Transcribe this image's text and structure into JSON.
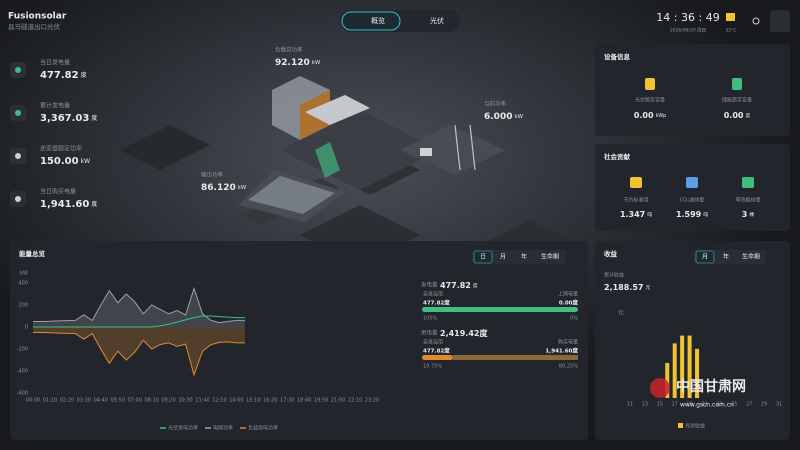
{
  "header": {
    "brand": "Fusionsolar",
    "site": "昌马隧道出口光伏",
    "tabs": [
      "概览",
      "光伏"
    ],
    "time": "14 : 36 : 49",
    "date": "2026/08/20 周四",
    "temp": "32°C"
  },
  "stats": [
    {
      "label": "当日发电量",
      "value": "477.82",
      "unit": "度"
    },
    {
      "label": "累计发电量",
      "value": "3,367.03",
      "unit": "度"
    },
    {
      "label": "逆变器额定功率",
      "value": "150.00",
      "unit": "kW"
    },
    {
      "label": "当日购买电量",
      "value": "1,941.60",
      "unit": "度"
    }
  ],
  "scene": [
    {
      "label": "负载总功率",
      "value": "92.120",
      "unit": "kW"
    },
    {
      "label": "当前功率",
      "value": "6.000",
      "unit": "kW"
    },
    {
      "label": "输出功率",
      "value": "86.120",
      "unit": "kW"
    }
  ],
  "device": {
    "title": "设备信息",
    "items": [
      {
        "label": "光伏额定容量",
        "value": "0.00",
        "unit": "kWp"
      },
      {
        "label": "储能额定容量",
        "value": "0.00",
        "unit": "度"
      }
    ]
  },
  "social": {
    "title": "社会贡献",
    "items": [
      {
        "label": "节约标准煤",
        "value": "1.347",
        "unit": "吨"
      },
      {
        "label": "CO₂减排量",
        "value": "1.599",
        "unit": "吨"
      },
      {
        "label": "等效植树量",
        "value": "3",
        "unit": "棵"
      }
    ]
  },
  "energy": {
    "title": "能量总览",
    "tabs": [
      "日",
      "月",
      "年",
      "生命期"
    ],
    "gen": {
      "label": "发电量",
      "value": "477.82",
      "unit": "度",
      "left_label": "自发自用",
      "left_value": "477.82度",
      "right_label": "上网电量",
      "right_value": "0.00度",
      "left_pct": "100%",
      "right_pct": "0%"
    },
    "use": {
      "label": "用电量",
      "value": "2,419.42度",
      "left_label": "自发自用",
      "left_value": "477.82度",
      "right_label": "购买电量",
      "right_value": "1,941.60度",
      "left_pct": "19.75%",
      "right_pct": "80.25%"
    }
  },
  "revenue": {
    "title": "收益",
    "tabs": [
      "月",
      "年",
      "生命期"
    ],
    "total_label": "累计收益",
    "total_value": "2,188.57",
    "total_unit": "元"
  },
  "watermark": [
    "中国甘肃网",
    "www.gscn.com.cn"
  ],
  "chart_data": [
    {
      "type": "line",
      "y_label": "kW",
      "categories": [
        "00:00",
        null,
        "01:10",
        null,
        "02:20",
        null,
        "03:30",
        null,
        "04:40",
        null,
        "05:50",
        null,
        "07:00",
        null,
        "08:10",
        null,
        "09:20",
        null,
        "10:30",
        null,
        "11:40",
        null,
        "12:50",
        null,
        "14:00",
        null,
        "15:10",
        null,
        "16:20",
        null,
        "17:30",
        null,
        "18:40",
        null,
        "19:50",
        null,
        "21:00",
        null,
        "22:10",
        null,
        "23:20"
      ],
      "series": [
        {
          "name": "光伏发电功率",
          "color": "#3fbf7f",
          "values": [
            0,
            0,
            0,
            0,
            0,
            0,
            0,
            0,
            0,
            0,
            0,
            0,
            0,
            0,
            0,
            10,
            25,
            45,
            65,
            85,
            100,
            100,
            95,
            90,
            85,
            85,
            null,
            null,
            null,
            null,
            null,
            null,
            null,
            null,
            null,
            null,
            null,
            null,
            null,
            null,
            null
          ]
        },
        {
          "name": "电网功率",
          "color": "#9aa0a8",
          "values": [
            50,
            50,
            52,
            55,
            58,
            60,
            110,
            60,
            200,
            330,
            220,
            300,
            230,
            120,
            200,
            160,
            120,
            150,
            110,
            350,
            120,
            60,
            40,
            50,
            60,
            60,
            null,
            null,
            null,
            null,
            null,
            null,
            null,
            null,
            null,
            null,
            null,
            null,
            null,
            null,
            null
          ]
        },
        {
          "name": "负载用电功率",
          "color": "#e08a2c",
          "values": [
            -50,
            -50,
            -52,
            -55,
            -58,
            -60,
            -110,
            -60,
            -200,
            -330,
            -220,
            -300,
            -230,
            -120,
            -200,
            -160,
            -145,
            -175,
            -155,
            -435,
            -220,
            -160,
            -140,
            -135,
            -145,
            -145,
            null,
            null,
            null,
            null,
            null,
            null,
            null,
            null,
            null,
            null,
            null,
            null,
            null,
            null,
            null
          ]
        }
      ],
      "ylim": [
        -600,
        400
      ],
      "yticks": [
        -600,
        -400,
        -200,
        0,
        200,
        400
      ],
      "legend": "bottom"
    },
    {
      "type": "bar",
      "y_label": "元",
      "legend": "bottom",
      "categories": [
        "11",
        null,
        "13",
        null,
        "15",
        null,
        "17",
        null,
        "19",
        null,
        "21",
        null,
        "23",
        null,
        "25",
        null,
        "27",
        null,
        "29",
        null,
        "31"
      ],
      "series": [
        {
          "name": "光伏收益",
          "color": "#f2c230",
          "values": [
            null,
            null,
            null,
            null,
            null,
            45,
            70,
            80,
            80,
            63,
            null,
            null,
            null,
            null,
            null,
            null,
            null,
            null,
            null,
            null,
            null
          ]
        }
      ],
      "ylim": [
        0,
        100
      ]
    }
  ]
}
